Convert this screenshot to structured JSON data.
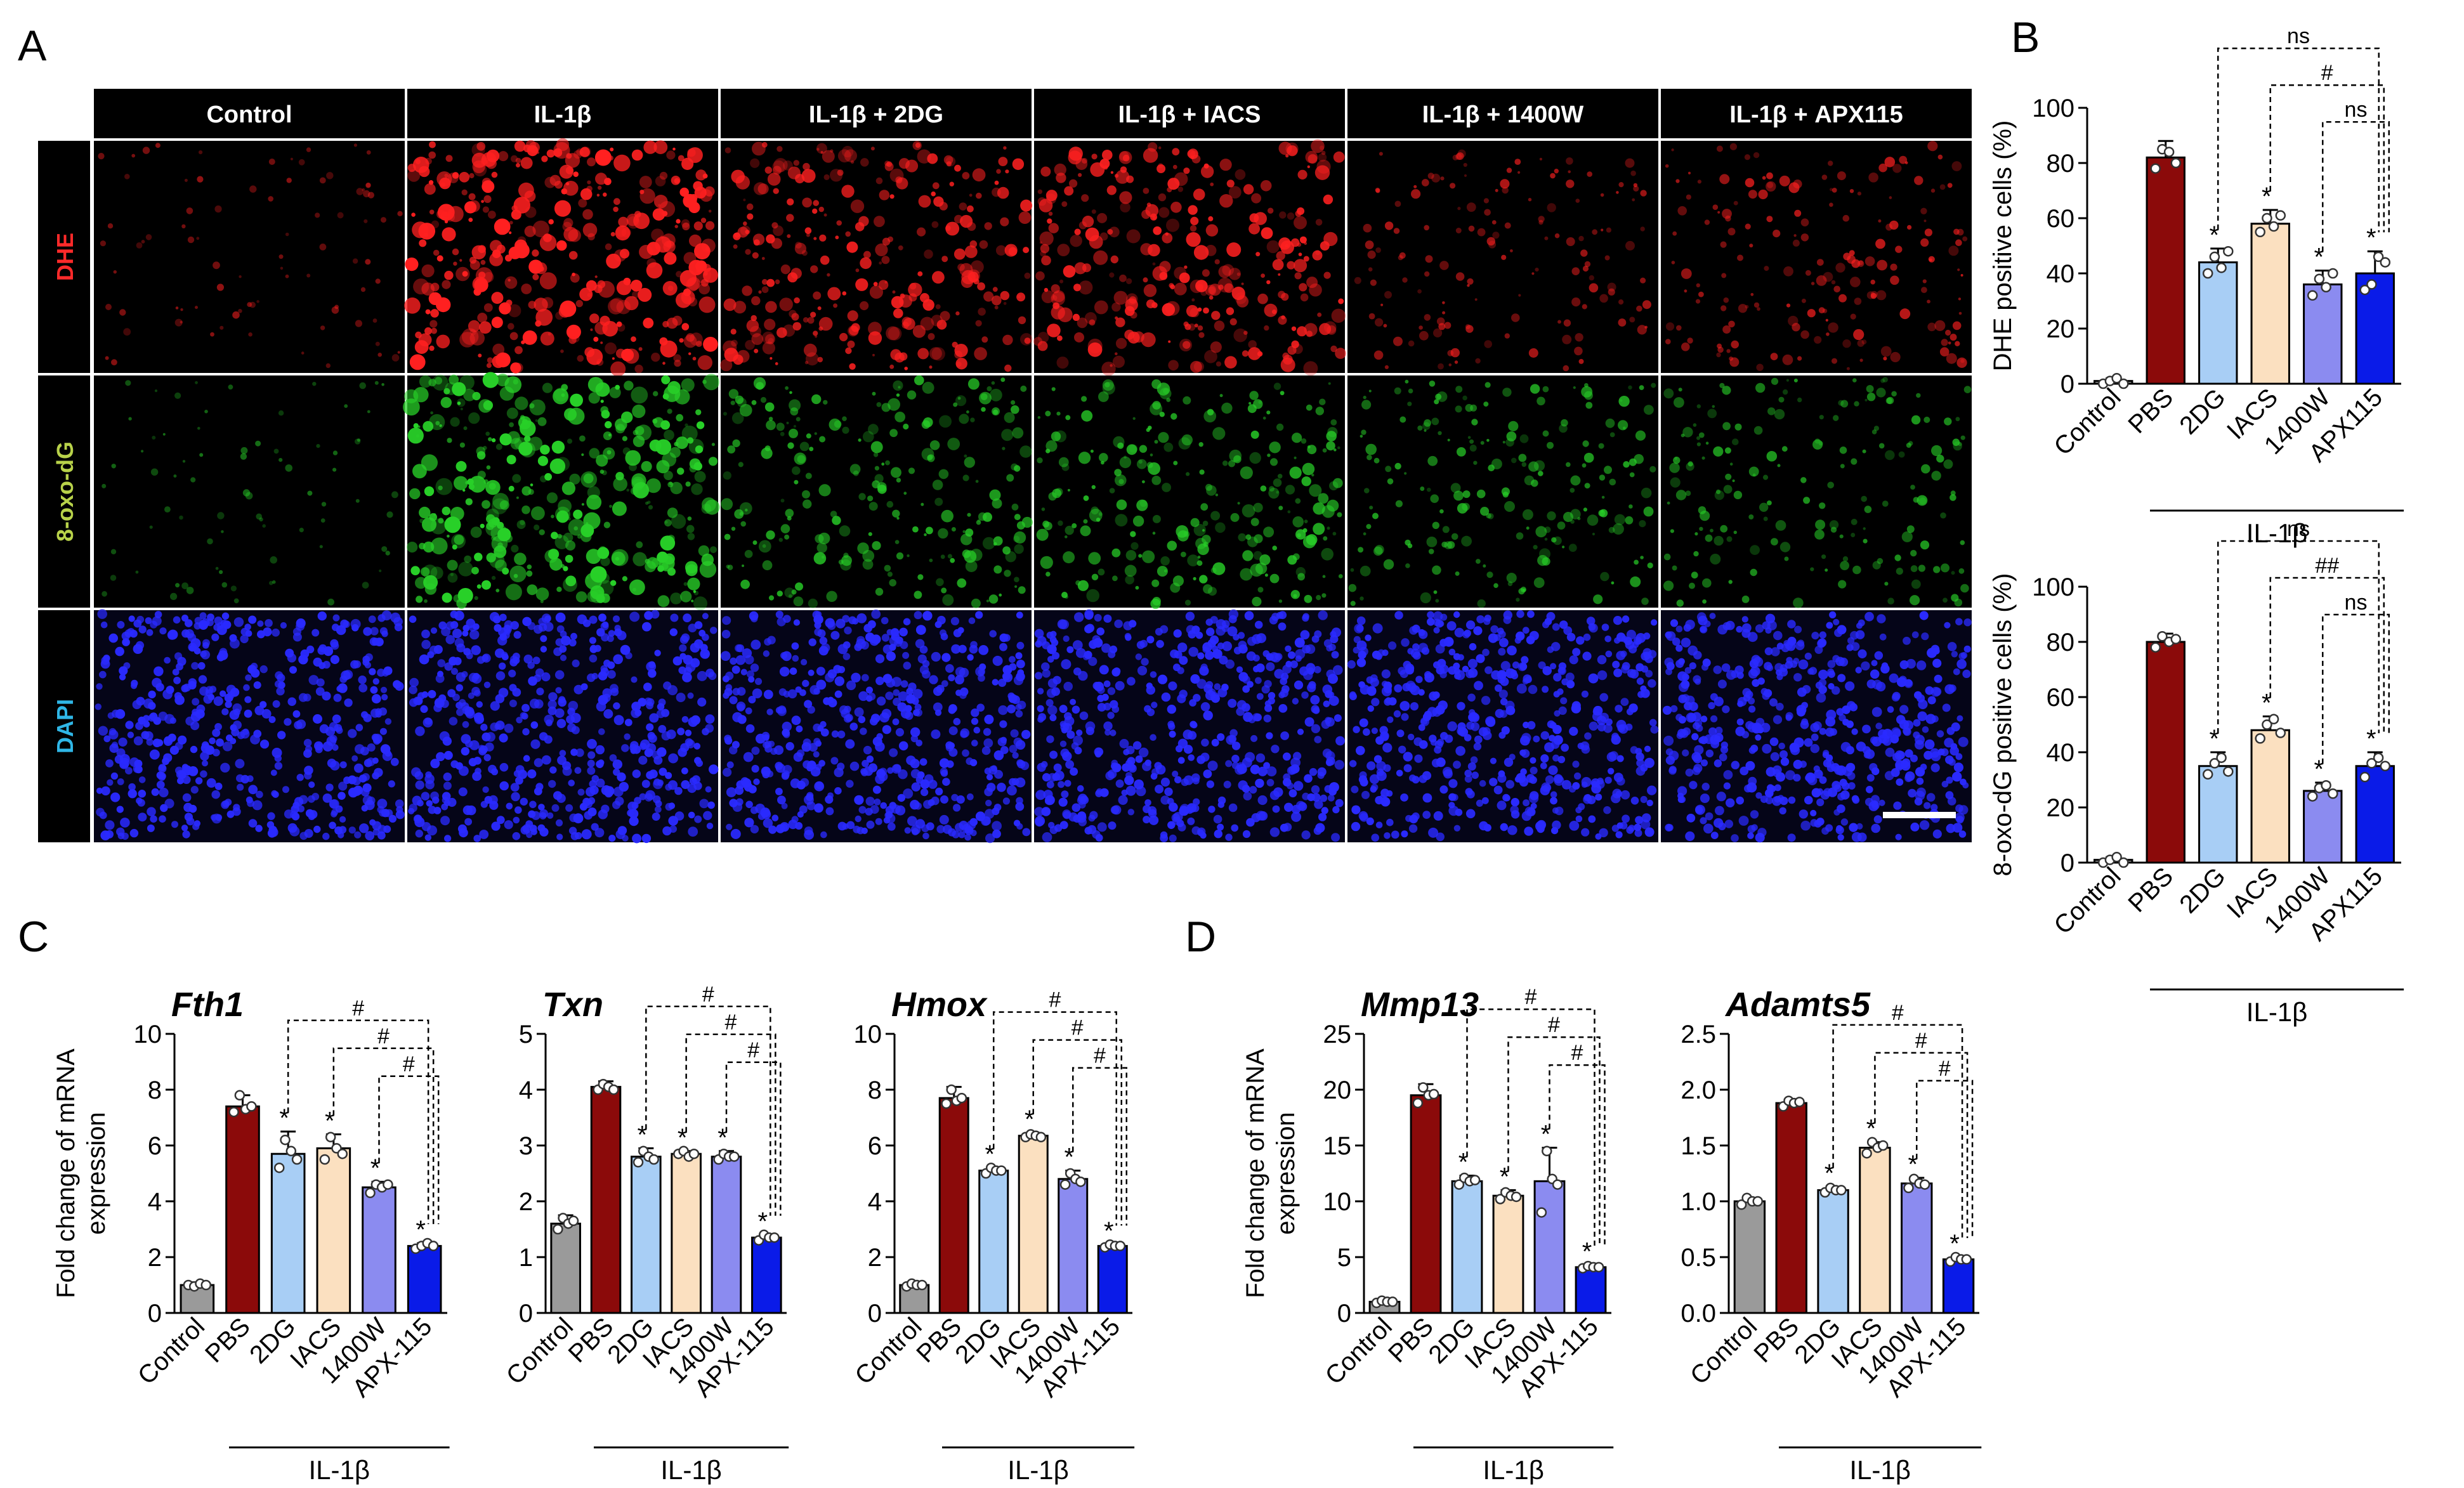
{
  "panel_letters": [
    "A",
    "B",
    "C",
    "D"
  ],
  "microscopy": {
    "columns": [
      "Control",
      "IL-1β",
      "IL-1β + 2DG",
      "IL-1β + IACS",
      "IL-1β + 1400W",
      "IL-1β + APX115"
    ],
    "rows": [
      {
        "label": "DHE",
        "label_color": "#ff2a2a",
        "stain_color": "#ff2020",
        "intensity": [
          0.12,
          0.95,
          0.7,
          0.75,
          0.3,
          0.4
        ]
      },
      {
        "label": "8-oxo-dG",
        "label_color": "#b8d24a",
        "stain_color": "#28d028",
        "intensity": [
          0.1,
          0.95,
          0.55,
          0.6,
          0.45,
          0.4
        ]
      },
      {
        "label": "DAPI",
        "label_color": "#2fb6e6",
        "stain_color": "#2a2aff",
        "intensity": [
          1,
          1,
          1,
          1,
          1,
          1
        ]
      }
    ]
  },
  "colors": {
    "control": "#9a9a9a",
    "pbs": "#8b0a0a",
    "dg2": "#a8cef5",
    "iacs": "#fbe0c0",
    "w1400": "#8b8bf0",
    "apx": "#0a1be8",
    "header_bg": "#000000",
    "header_text": "#ffffff"
  },
  "chart_data": [
    {
      "id": "B-top",
      "type": "bar",
      "categories": [
        "Control",
        "PBS",
        "2DG",
        "IACS",
        "1400W",
        "APX115"
      ],
      "values": [
        1,
        82,
        44,
        58,
        36,
        40
      ],
      "errors": [
        1,
        6,
        5,
        5,
        5,
        8
      ],
      "points": [
        [
          0,
          1,
          2,
          0
        ],
        [
          78,
          85,
          84,
          80
        ],
        [
          40,
          46,
          42,
          48
        ],
        [
          55,
          60,
          57,
          61
        ],
        [
          32,
          38,
          35,
          40
        ],
        [
          34,
          36,
          46,
          44
        ]
      ],
      "stars": [
        "",
        "",
        "*",
        "*",
        "*",
        "*"
      ],
      "ylabel": "DHE positive cells (%)",
      "ylim": [
        0,
        100
      ],
      "yticks": [
        0,
        20,
        40,
        60,
        80,
        100
      ],
      "group_label": "IL-1β",
      "brackets": [
        {
          "from": 2,
          "to": 5,
          "label": "ns"
        },
        {
          "from": 3,
          "to": 5,
          "label": "#"
        },
        {
          "from": 4,
          "to": 5,
          "label": "ns"
        }
      ]
    },
    {
      "id": "B-bottom",
      "type": "bar",
      "categories": [
        "Control",
        "PBS",
        "2DG",
        "IACS",
        "1400W",
        "APX115"
      ],
      "values": [
        1,
        80,
        35,
        48,
        26,
        35
      ],
      "errors": [
        1,
        3,
        5,
        5,
        3,
        5
      ],
      "points": [
        [
          0,
          1,
          2,
          0
        ],
        [
          78,
          82,
          80,
          81
        ],
        [
          32,
          36,
          38,
          33
        ],
        [
          45,
          50,
          52,
          47
        ],
        [
          24,
          27,
          28,
          25
        ],
        [
          31,
          36,
          38,
          35
        ]
      ],
      "stars": [
        "",
        "",
        "*",
        "*",
        "*",
        "*"
      ],
      "ylabel": "8-oxo-dG positive cells (%)",
      "ylim": [
        0,
        100
      ],
      "yticks": [
        0,
        20,
        40,
        60,
        80,
        100
      ],
      "group_label": "IL-1β",
      "brackets": [
        {
          "from": 2,
          "to": 5,
          "label": "ns"
        },
        {
          "from": 3,
          "to": 5,
          "label": "##"
        },
        {
          "from": 4,
          "to": 5,
          "label": "ns"
        }
      ]
    },
    {
      "id": "C-Fth1",
      "type": "bar",
      "title": "Fth1",
      "categories": [
        "Control",
        "PBS",
        "2DG",
        "IACS",
        "1400W",
        "APX-115"
      ],
      "values": [
        1.0,
        7.4,
        5.7,
        5.9,
        4.5,
        2.4
      ],
      "errors": [
        0.1,
        0.4,
        0.8,
        0.5,
        0.2,
        0.1
      ],
      "points": [
        [
          1.0,
          0.95,
          1.05,
          1.0
        ],
        [
          7.2,
          7.8,
          7.3,
          7.4
        ],
        [
          5.2,
          6.2,
          5.8,
          5.5
        ],
        [
          5.5,
          6.3,
          5.9,
          5.7
        ],
        [
          4.3,
          4.6,
          4.5,
          4.6
        ],
        [
          2.3,
          2.4,
          2.5,
          2.4
        ]
      ],
      "stars": [
        "",
        "",
        "*",
        "*",
        "*",
        "*"
      ],
      "ylabel": "Fold change of mRNA expression",
      "ylim": [
        0,
        10
      ],
      "yticks": [
        0,
        2,
        4,
        6,
        8,
        10
      ],
      "group_label": "IL-1β",
      "brackets": [
        {
          "from": 2,
          "to": 5,
          "label": "#"
        },
        {
          "from": 3,
          "to": 5,
          "label": "#"
        },
        {
          "from": 4,
          "to": 5,
          "label": "#"
        }
      ]
    },
    {
      "id": "C-Txn",
      "type": "bar",
      "title": "Txn",
      "categories": [
        "Control",
        "PBS",
        "2DG",
        "IACS",
        "1400W",
        "APX-115"
      ],
      "values": [
        1.6,
        4.05,
        2.8,
        2.85,
        2.8,
        1.35
      ],
      "errors": [
        0.15,
        0.1,
        0.15,
        0.05,
        0.1,
        0.05
      ],
      "points": [
        [
          1.5,
          1.7,
          1.6,
          1.65
        ],
        [
          4.0,
          4.1,
          4.05,
          4.0
        ],
        [
          2.7,
          2.9,
          2.8,
          2.75
        ],
        [
          2.85,
          2.9,
          2.8,
          2.85
        ],
        [
          2.75,
          2.85,
          2.8,
          2.8
        ],
        [
          1.3,
          1.4,
          1.35,
          1.35
        ]
      ],
      "stars": [
        "",
        "",
        "*",
        "*",
        "*",
        "*"
      ],
      "ylabel": "",
      "ylim": [
        0,
        5
      ],
      "yticks": [
        0,
        1,
        2,
        3,
        4,
        5
      ],
      "group_label": "IL-1β",
      "brackets": [
        {
          "from": 2,
          "to": 5,
          "label": "#"
        },
        {
          "from": 3,
          "to": 5,
          "label": "#"
        },
        {
          "from": 4,
          "to": 5,
          "label": "#"
        }
      ]
    },
    {
      "id": "C-Hmox",
      "type": "bar",
      "title": "Hmox",
      "categories": [
        "Control",
        "PBS",
        "2DG",
        "IACS",
        "1400W",
        "APX-115"
      ],
      "values": [
        1.0,
        7.7,
        5.1,
        6.35,
        4.8,
        2.4
      ],
      "errors": [
        0.1,
        0.4,
        0.1,
        0.1,
        0.3,
        0.05
      ],
      "points": [
        [
          0.95,
          1.05,
          1.0,
          1.0
        ],
        [
          7.5,
          8.0,
          7.6,
          7.7
        ],
        [
          5.0,
          5.2,
          5.1,
          5.1
        ],
        [
          6.3,
          6.4,
          6.35,
          6.3
        ],
        [
          4.6,
          5.0,
          4.8,
          4.7
        ],
        [
          2.35,
          2.45,
          2.4,
          2.4
        ]
      ],
      "stars": [
        "",
        "",
        "*",
        "*",
        "*",
        "*"
      ],
      "ylabel": "",
      "ylim": [
        0,
        10
      ],
      "yticks": [
        0,
        2,
        4,
        6,
        8,
        10
      ],
      "group_label": "IL-1β",
      "brackets": [
        {
          "from": 2,
          "to": 5,
          "label": "#"
        },
        {
          "from": 3,
          "to": 5,
          "label": "#"
        },
        {
          "from": 4,
          "to": 5,
          "label": "#"
        }
      ]
    },
    {
      "id": "D-Mmp13",
      "type": "bar",
      "title": "Mmp13",
      "categories": [
        "Control",
        "PBS",
        "2DG",
        "IACS",
        "1400W",
        "APX-115"
      ],
      "values": [
        1.0,
        19.5,
        11.8,
        10.5,
        11.8,
        4.1
      ],
      "errors": [
        0.2,
        1.0,
        0.5,
        0.5,
        3.0,
        0.2
      ],
      "points": [
        [
          0.9,
          1.1,
          1.0,
          1.0
        ],
        [
          18.8,
          20.2,
          19.5,
          19.6
        ],
        [
          11.5,
          12.1,
          11.8,
          11.9
        ],
        [
          10.2,
          10.8,
          10.5,
          10.4
        ],
        [
          9.0,
          14.5,
          12.0,
          11.5
        ],
        [
          4.0,
          4.2,
          4.1,
          4.1
        ]
      ],
      "stars": [
        "",
        "",
        "*",
        "*",
        "*",
        "*"
      ],
      "ylabel": "Fold change of mRNA expression",
      "ylim": [
        0,
        25
      ],
      "yticks": [
        0,
        5,
        10,
        15,
        20,
        25
      ],
      "group_label": "IL-1β",
      "brackets": [
        {
          "from": 2,
          "to": 5,
          "label": "#"
        },
        {
          "from": 3,
          "to": 5,
          "label": "#"
        },
        {
          "from": 4,
          "to": 5,
          "label": "#"
        }
      ]
    },
    {
      "id": "D-Adamts5",
      "type": "bar",
      "title": "Adamts5",
      "categories": [
        "Control",
        "PBS",
        "2DG",
        "IACS",
        "1400W",
        "APX-115"
      ],
      "values": [
        1.0,
        1.88,
        1.1,
        1.48,
        1.16,
        0.48
      ],
      "errors": [
        0.03,
        0.03,
        0.03,
        0.05,
        0.05,
        0.02
      ],
      "points": [
        [
          0.97,
          1.03,
          1.0,
          1.0
        ],
        [
          1.85,
          1.9,
          1.88,
          1.89
        ],
        [
          1.08,
          1.12,
          1.1,
          1.1
        ],
        [
          1.43,
          1.53,
          1.48,
          1.5
        ],
        [
          1.12,
          1.2,
          1.16,
          1.15
        ],
        [
          0.46,
          0.5,
          0.48,
          0.48
        ]
      ],
      "stars": [
        "",
        "",
        "*",
        "*",
        "*",
        "*"
      ],
      "ylabel": "",
      "ylim": [
        0,
        2.5
      ],
      "yticks": [
        0.0,
        0.5,
        1.0,
        1.5,
        2.0,
        2.5
      ],
      "group_label": "IL-1β",
      "brackets": [
        {
          "from": 2,
          "to": 5,
          "label": "#"
        },
        {
          "from": 3,
          "to": 5,
          "label": "#"
        },
        {
          "from": 4,
          "to": 5,
          "label": "#"
        }
      ]
    }
  ]
}
